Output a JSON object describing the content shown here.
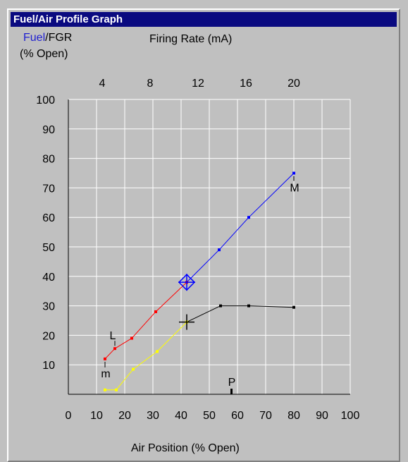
{
  "window": {
    "title": "Fuel/Air Profile Graph"
  },
  "legend": {
    "fuel": "Fuel",
    "separator": "/",
    "fgr": "FGR",
    "yunit": "(% Open)"
  },
  "chart_data": {
    "type": "line",
    "title": "",
    "xlabel": "Air Position (% Open)",
    "x2label": "Firing Rate (mA)",
    "xlim": [
      0,
      100
    ],
    "ylim": [
      0,
      100
    ],
    "xticks": [
      0,
      10,
      20,
      30,
      40,
      50,
      60,
      70,
      80,
      90,
      100
    ],
    "yticks": [
      10,
      20,
      30,
      40,
      50,
      60,
      70,
      80,
      90,
      100
    ],
    "x2ticks": [
      4,
      8,
      12,
      16,
      20
    ],
    "grid": true,
    "colors": {
      "fuel_low": "#ff0000",
      "fuel_high": "#0000ff",
      "fgr_low": "#ffff00",
      "fgr_high": "#000000",
      "grid": "#ffffff"
    },
    "series": [
      {
        "name": "Fuel",
        "points": [
          [
            13,
            12
          ],
          [
            16.5,
            15.5
          ],
          [
            22.5,
            19
          ],
          [
            31,
            28
          ],
          [
            42,
            38
          ],
          [
            53.5,
            49
          ],
          [
            64,
            60
          ],
          [
            80,
            75
          ]
        ]
      },
      {
        "name": "FGR",
        "points": [
          [
            13,
            1.5
          ],
          [
            17,
            1.5
          ],
          [
            23,
            8.5
          ],
          [
            31.5,
            14.5
          ],
          [
            42,
            24.5
          ],
          [
            54,
            30
          ],
          [
            64,
            30
          ],
          [
            80,
            29.5
          ]
        ]
      }
    ],
    "cursor": {
      "fuel": [
        42,
        38
      ],
      "fgr": [
        42,
        24.5
      ]
    },
    "markers": [
      {
        "label": "L",
        "x": 16.5,
        "y": 15.5
      },
      {
        "label": "m",
        "x": 13,
        "y": 12
      },
      {
        "label": "M",
        "x": 80,
        "y": 75
      },
      {
        "label": "P",
        "x": 58,
        "y": 0
      }
    ]
  }
}
